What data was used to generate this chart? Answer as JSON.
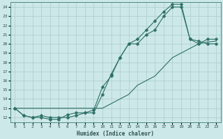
{
  "title": "",
  "xlabel": "Humidex (Indice chaleur)",
  "ylabel": "",
  "bg_color": "#cde8e8",
  "grid_color": "#b0d0d0",
  "line_color": "#2d7068",
  "xlim": [
    -0.5,
    23.5
  ],
  "ylim": [
    11.5,
    24.5
  ],
  "xticks": [
    0,
    1,
    2,
    3,
    4,
    5,
    6,
    7,
    8,
    9,
    10,
    11,
    12,
    13,
    14,
    15,
    16,
    17,
    18,
    19,
    20,
    21,
    22,
    23
  ],
  "yticks": [
    12,
    13,
    14,
    15,
    16,
    17,
    18,
    19,
    20,
    21,
    22,
    23,
    24
  ],
  "line1_x": [
    0,
    1,
    2,
    3,
    4,
    5,
    6,
    7,
    8,
    9,
    10,
    11,
    12,
    13,
    14,
    15,
    16,
    17,
    18,
    19,
    20,
    21,
    22,
    23
  ],
  "line1_y": [
    13,
    12.2,
    12,
    12,
    11.8,
    11.8,
    12.3,
    12.5,
    12.5,
    12.5,
    14.5,
    16.7,
    18.5,
    20,
    20,
    21,
    21.5,
    23,
    24,
    24,
    20.5,
    20.3,
    20,
    20
  ],
  "line2_x": [
    0,
    1,
    2,
    3,
    4,
    5,
    6,
    7,
    8,
    9,
    10,
    11,
    12,
    13,
    14,
    15,
    16,
    17,
    18,
    19,
    20,
    21,
    22,
    23
  ],
  "line2_y": [
    13,
    12.2,
    12,
    12.2,
    12,
    12,
    12,
    12.2,
    12.5,
    12.8,
    15.3,
    16.5,
    18.5,
    20,
    20.5,
    21.5,
    22.5,
    23.5,
    24.3,
    24.3,
    20.5,
    20,
    20.5,
    20.5
  ],
  "line3_x": [
    0,
    10,
    11,
    12,
    13,
    14,
    15,
    16,
    17,
    18,
    19,
    20,
    21,
    22,
    23
  ],
  "line3_y": [
    13,
    13.0,
    13.5,
    14,
    14.5,
    15.5,
    16,
    16.5,
    17.5,
    18.5,
    19.0,
    19.5,
    20.0,
    20.2,
    20.3
  ]
}
